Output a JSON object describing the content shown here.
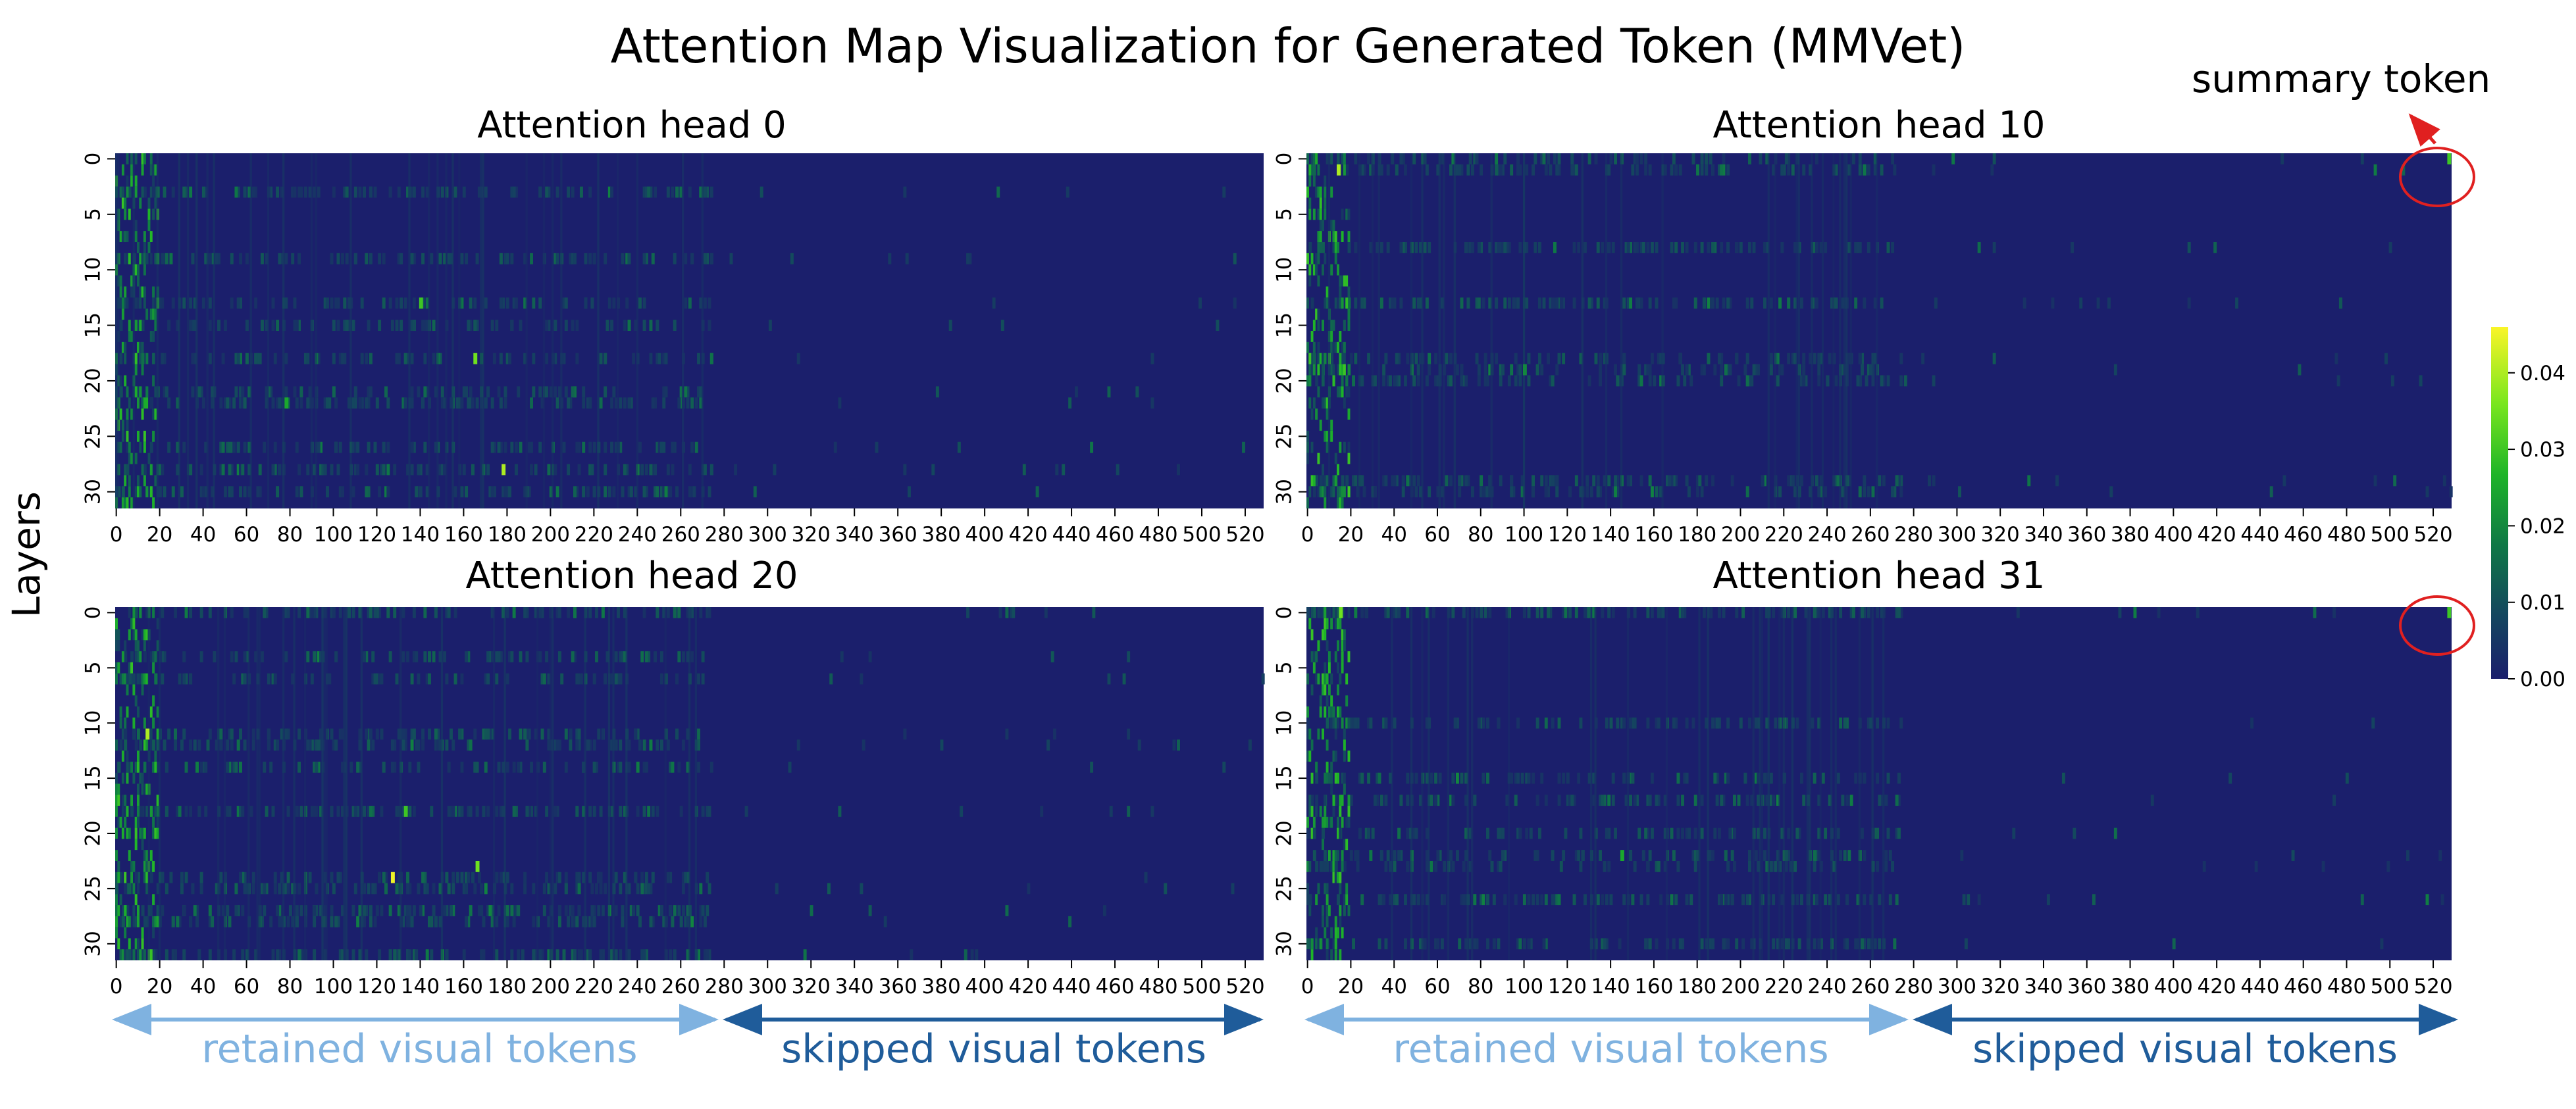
{
  "title": "Attention Map Visualization for Generated Token (MMVet)",
  "ylabel": "Layers",
  "annotation": {
    "text": "summary token",
    "color": "#e02020"
  },
  "colors": {
    "retained": "#7fb2e0",
    "skipped": "#1f5c9a",
    "background_cell": "#1b1f6c"
  },
  "chart_data": {
    "type": "heatmap",
    "title": "Attention Map Visualization for Generated Token (MMVet)",
    "ylabel": "Layers",
    "xlabel": "",
    "x_range": [
      0,
      529
    ],
    "y_range": [
      0,
      31
    ],
    "x_ticks": [
      0,
      20,
      40,
      60,
      80,
      100,
      120,
      140,
      160,
      180,
      200,
      220,
      240,
      260,
      280,
      300,
      320,
      340,
      360,
      380,
      400,
      420,
      440,
      460,
      480,
      500,
      520
    ],
    "y_ticks": [
      0,
      5,
      10,
      15,
      20,
      25,
      30
    ],
    "colorbar": {
      "range": [
        0,
        0.046
      ],
      "ticks": [
        "0.00",
        "0.01",
        "0.02",
        "0.03",
        "0.04"
      ],
      "colormap": "viridis-like"
    },
    "regions": [
      {
        "label": "retained visual tokens",
        "x_range": [
          0,
          279
        ]
      },
      {
        "label": "skipped visual tokens",
        "x_range": [
          279,
          529
        ]
      }
    ],
    "panels": [
      {
        "title": "Attention head 0",
        "hot_layers": [
          3,
          9,
          13,
          15,
          18,
          21,
          22,
          26,
          28,
          30
        ],
        "peaks": [
          {
            "token": 140,
            "layer": 13,
            "value": 0.03
          },
          {
            "token": 165,
            "layer": 18,
            "value": 0.035
          },
          {
            "token": 178,
            "layer": 28,
            "value": 0.04
          },
          {
            "token": 78,
            "layer": 22,
            "value": 0.025
          }
        ],
        "summary_circle": false
      },
      {
        "title": "Attention head 10",
        "hot_layers": [
          0,
          1,
          8,
          13,
          18,
          19,
          20,
          29,
          30
        ],
        "peaks": [
          {
            "token": 14,
            "layer": 1,
            "value": 0.04
          },
          {
            "token": 100,
            "layer": 19,
            "value": 0.02
          },
          {
            "token": 527,
            "layer": 0,
            "value": 0.03
          }
        ],
        "summary_circle": true
      },
      {
        "title": "Attention head 20",
        "hot_layers": [
          0,
          4,
          6,
          11,
          12,
          14,
          18,
          24,
          25,
          27,
          28,
          31
        ],
        "peaks": [
          {
            "token": 14,
            "layer": 11,
            "value": 0.04
          },
          {
            "token": 127,
            "layer": 24,
            "value": 0.045
          },
          {
            "token": 166,
            "layer": 23,
            "value": 0.035
          },
          {
            "token": 133,
            "layer": 18,
            "value": 0.03
          }
        ],
        "summary_circle": false
      },
      {
        "title": "Attention head 31",
        "hot_layers": [
          0,
          10,
          15,
          17,
          20,
          22,
          23,
          26,
          30
        ],
        "peaks": [
          {
            "token": 15,
            "layer": 0,
            "value": 0.035
          },
          {
            "token": 145,
            "layer": 22,
            "value": 0.025
          },
          {
            "token": 527,
            "layer": 0,
            "value": 0.03
          }
        ],
        "summary_circle": true
      }
    ]
  }
}
